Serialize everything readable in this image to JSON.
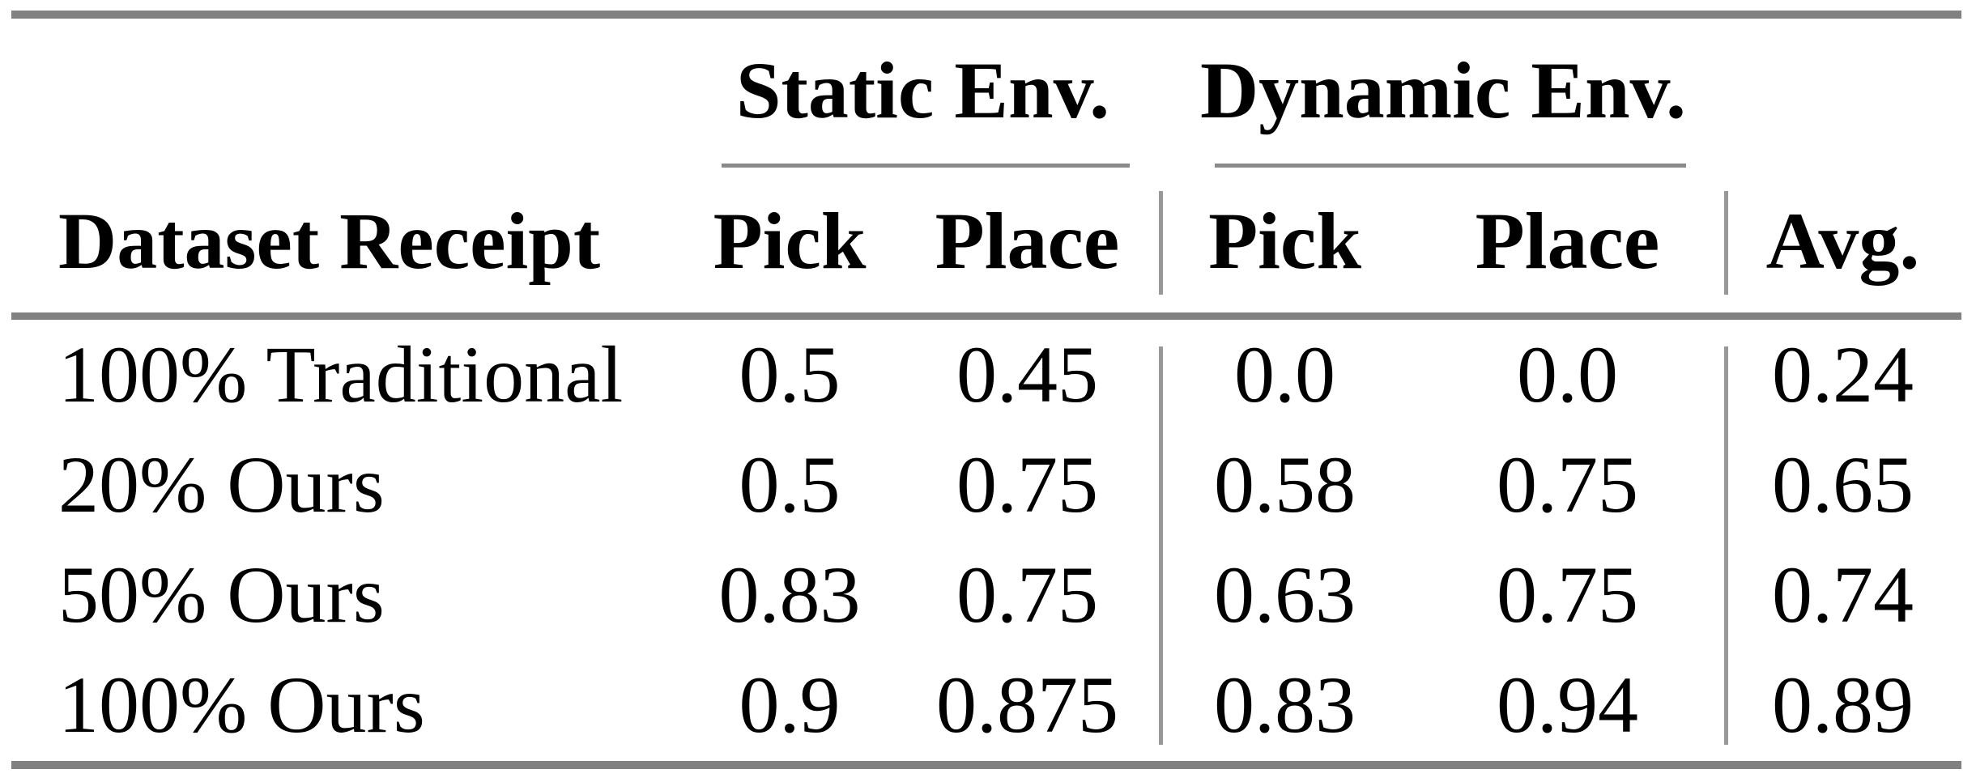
{
  "table": {
    "group_headers": [
      "Static Env.",
      "Dynamic Env."
    ],
    "columns": [
      "Dataset Receipt",
      "Pick",
      "Place",
      "Pick",
      "Place",
      "Avg."
    ],
    "rows": [
      {
        "cells": [
          "100% Traditional",
          "0.5",
          "0.45",
          "0.0",
          "0.0",
          "0.24"
        ]
      },
      {
        "cells": [
          "20% Ours",
          "0.5",
          "0.75",
          "0.58",
          "0.75",
          "0.65"
        ]
      },
      {
        "cells": [
          "50% Ours",
          "0.83",
          "0.75",
          "0.63",
          "0.75",
          "0.74"
        ]
      },
      {
        "cells": [
          "100% Ours",
          "0.9",
          "0.875",
          "0.83",
          "0.94",
          "0.89"
        ]
      }
    ],
    "colors": {
      "rule_thick": "#818181",
      "rule_thin": "#989898",
      "text": "#000000",
      "background": "#ffffff"
    }
  },
  "chart_data": {
    "type": "table",
    "title": "",
    "column_groups": [
      {
        "label": "Static Env.",
        "columns": [
          "Pick",
          "Place"
        ]
      },
      {
        "label": "Dynamic Env.",
        "columns": [
          "Pick",
          "Place"
        ]
      }
    ],
    "columns": [
      "Dataset Receipt",
      "Static Env. Pick",
      "Static Env. Place",
      "Dynamic Env. Pick",
      "Dynamic Env. Place",
      "Avg."
    ],
    "rows": [
      [
        "100% Traditional",
        0.5,
        0.45,
        0.0,
        0.0,
        0.24
      ],
      [
        "20% Ours",
        0.5,
        0.75,
        0.58,
        0.75,
        0.65
      ],
      [
        "50% Ours",
        0.83,
        0.75,
        0.63,
        0.75,
        0.74
      ],
      [
        "100% Ours",
        0.9,
        0.875,
        0.83,
        0.94,
        0.89
      ]
    ]
  }
}
